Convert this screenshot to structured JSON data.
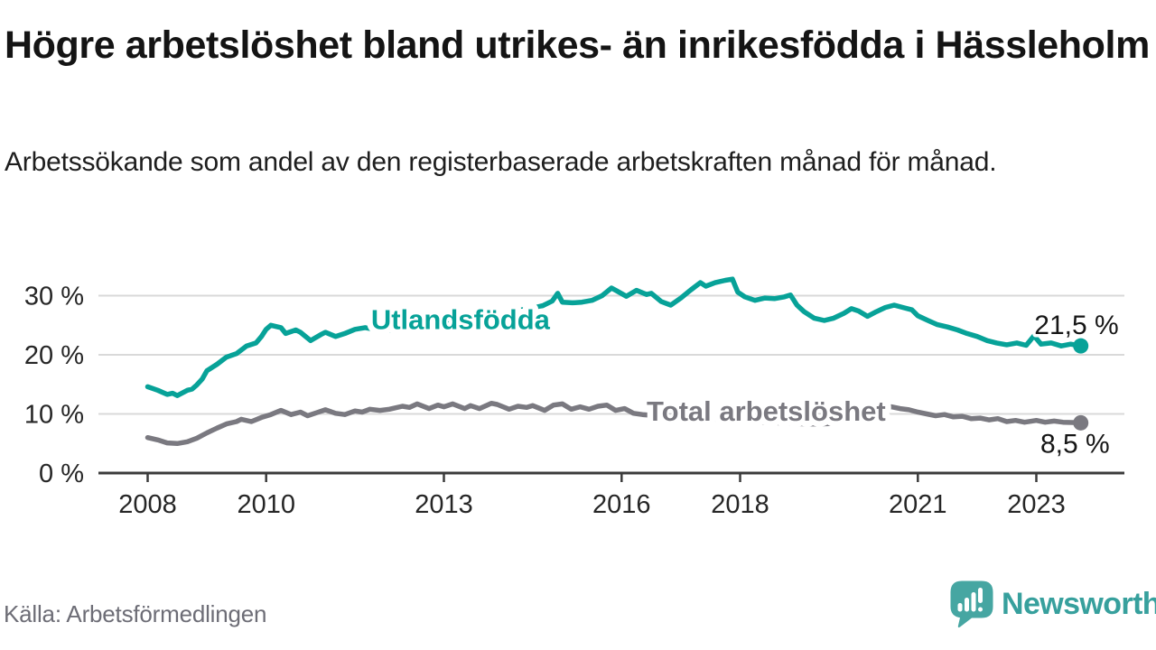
{
  "chart_data": {
    "type": "line",
    "title": "Högre arbetslöshet bland utrikes- än inrikesfödda i Hässleholm",
    "subtitle": "Arbetssökande som andel av den registerbaserade arbetskraften månad för månad.",
    "unit": "%",
    "x_axis": {
      "ticks": [
        2008,
        2010,
        2013,
        2016,
        2018,
        2021,
        2023
      ]
    },
    "y_axis": {
      "ticks": [
        0,
        10,
        20,
        30
      ],
      "tick_suffix": " %",
      "range": [
        0,
        33.5
      ],
      "grid": true
    },
    "legend_position": "inline-labels",
    "series": [
      {
        "name": "Utlandsfödda",
        "color": "#07a298",
        "label_at": {
          "x": 2013.28,
          "y": 26.0
        },
        "end_value_label": "21,5 %",
        "end_label_position": "above",
        "points": [
          [
            2008.0,
            14.6
          ],
          [
            2008.17,
            14.0
          ],
          [
            2008.33,
            13.3
          ],
          [
            2008.42,
            13.5
          ],
          [
            2008.5,
            13.1
          ],
          [
            2008.67,
            14.0
          ],
          [
            2008.75,
            14.2
          ],
          [
            2008.83,
            14.9
          ],
          [
            2008.92,
            15.9
          ],
          [
            2009.0,
            17.3
          ],
          [
            2009.17,
            18.4
          ],
          [
            2009.33,
            19.6
          ],
          [
            2009.5,
            20.2
          ],
          [
            2009.67,
            21.5
          ],
          [
            2009.83,
            22.0
          ],
          [
            2009.92,
            23.1
          ],
          [
            2010.0,
            24.3
          ],
          [
            2010.08,
            25.0
          ],
          [
            2010.25,
            24.6
          ],
          [
            2010.33,
            23.6
          ],
          [
            2010.5,
            24.2
          ],
          [
            2010.58,
            23.8
          ],
          [
            2010.75,
            22.4
          ],
          [
            2010.92,
            23.4
          ],
          [
            2011.0,
            23.8
          ],
          [
            2011.17,
            23.1
          ],
          [
            2011.33,
            23.6
          ],
          [
            2011.5,
            24.3
          ],
          [
            2011.67,
            24.6
          ],
          [
            2011.83,
            24.3
          ],
          [
            2012.0,
            24.0
          ],
          [
            2012.25,
            24.4
          ],
          [
            2012.5,
            24.9
          ],
          [
            2012.75,
            25.3
          ],
          [
            2013.0,
            25.7
          ],
          [
            2013.25,
            26.1
          ],
          [
            2013.5,
            26.4
          ],
          [
            2013.75,
            26.8
          ],
          [
            2014.0,
            27.1
          ],
          [
            2014.25,
            27.5
          ],
          [
            2014.5,
            27.9
          ],
          [
            2014.67,
            28.3
          ],
          [
            2014.83,
            29.1
          ],
          [
            2014.92,
            30.4
          ],
          [
            2015.0,
            28.9
          ],
          [
            2015.17,
            28.8
          ],
          [
            2015.33,
            28.9
          ],
          [
            2015.5,
            29.2
          ],
          [
            2015.67,
            30.0
          ],
          [
            2015.83,
            31.3
          ],
          [
            2015.92,
            30.8
          ],
          [
            2016.08,
            29.9
          ],
          [
            2016.25,
            30.9
          ],
          [
            2016.42,
            30.2
          ],
          [
            2016.5,
            30.4
          ],
          [
            2016.67,
            29.0
          ],
          [
            2016.83,
            28.4
          ],
          [
            2017.0,
            29.6
          ],
          [
            2017.17,
            31.0
          ],
          [
            2017.33,
            32.2
          ],
          [
            2017.42,
            31.6
          ],
          [
            2017.58,
            32.2
          ],
          [
            2017.75,
            32.6
          ],
          [
            2017.87,
            32.8
          ],
          [
            2017.96,
            30.6
          ],
          [
            2018.08,
            29.8
          ],
          [
            2018.25,
            29.2
          ],
          [
            2018.42,
            29.6
          ],
          [
            2018.58,
            29.5
          ],
          [
            2018.75,
            29.8
          ],
          [
            2018.85,
            30.1
          ],
          [
            2018.96,
            28.4
          ],
          [
            2019.08,
            27.3
          ],
          [
            2019.25,
            26.2
          ],
          [
            2019.42,
            25.8
          ],
          [
            2019.58,
            26.2
          ],
          [
            2019.75,
            27.0
          ],
          [
            2019.88,
            27.8
          ],
          [
            2020.0,
            27.4
          ],
          [
            2020.15,
            26.5
          ],
          [
            2020.3,
            27.3
          ],
          [
            2020.45,
            28.0
          ],
          [
            2020.6,
            28.4
          ],
          [
            2020.75,
            28.0
          ],
          [
            2020.9,
            27.6
          ],
          [
            2021.0,
            26.6
          ],
          [
            2021.17,
            25.8
          ],
          [
            2021.33,
            25.1
          ],
          [
            2021.5,
            24.7
          ],
          [
            2021.67,
            24.2
          ],
          [
            2021.83,
            23.6
          ],
          [
            2022.0,
            23.1
          ],
          [
            2022.17,
            22.4
          ],
          [
            2022.33,
            22.0
          ],
          [
            2022.5,
            21.7
          ],
          [
            2022.67,
            22.0
          ],
          [
            2022.83,
            21.6
          ],
          [
            2022.96,
            23.2
          ],
          [
            2023.08,
            21.8
          ],
          [
            2023.25,
            22.0
          ],
          [
            2023.42,
            21.5
          ],
          [
            2023.58,
            21.8
          ],
          [
            2023.75,
            21.5
          ]
        ]
      },
      {
        "name": "Total arbetslöshet",
        "color": "#7a7980",
        "label_at": {
          "x": 2018.44,
          "y": 10.5
        },
        "end_value_label": "8,5 %",
        "end_label_position": "below",
        "points": [
          [
            2008.0,
            6.0
          ],
          [
            2008.17,
            5.6
          ],
          [
            2008.33,
            5.1
          ],
          [
            2008.5,
            5.0
          ],
          [
            2008.67,
            5.3
          ],
          [
            2008.83,
            5.9
          ],
          [
            2009.0,
            6.8
          ],
          [
            2009.17,
            7.6
          ],
          [
            2009.33,
            8.3
          ],
          [
            2009.5,
            8.7
          ],
          [
            2009.58,
            9.1
          ],
          [
            2009.75,
            8.7
          ],
          [
            2009.92,
            9.4
          ],
          [
            2010.08,
            9.9
          ],
          [
            2010.25,
            10.6
          ],
          [
            2010.42,
            9.9
          ],
          [
            2010.58,
            10.3
          ],
          [
            2010.7,
            9.7
          ],
          [
            2010.85,
            10.2
          ],
          [
            2011.0,
            10.7
          ],
          [
            2011.17,
            10.1
          ],
          [
            2011.33,
            9.9
          ],
          [
            2011.5,
            10.5
          ],
          [
            2011.62,
            10.3
          ],
          [
            2011.75,
            10.8
          ],
          [
            2011.92,
            10.6
          ],
          [
            2012.08,
            10.8
          ],
          [
            2012.3,
            11.3
          ],
          [
            2012.42,
            11.1
          ],
          [
            2012.55,
            11.7
          ],
          [
            2012.75,
            10.9
          ],
          [
            2012.9,
            11.5
          ],
          [
            2013.0,
            11.2
          ],
          [
            2013.15,
            11.7
          ],
          [
            2013.35,
            10.9
          ],
          [
            2013.45,
            11.4
          ],
          [
            2013.6,
            10.9
          ],
          [
            2013.8,
            11.8
          ],
          [
            2013.9,
            11.6
          ],
          [
            2014.1,
            10.8
          ],
          [
            2014.25,
            11.3
          ],
          [
            2014.4,
            11.1
          ],
          [
            2014.5,
            11.4
          ],
          [
            2014.7,
            10.6
          ],
          [
            2014.85,
            11.5
          ],
          [
            2015.0,
            11.7
          ],
          [
            2015.15,
            10.8
          ],
          [
            2015.3,
            11.2
          ],
          [
            2015.45,
            10.8
          ],
          [
            2015.6,
            11.3
          ],
          [
            2015.75,
            11.5
          ],
          [
            2015.9,
            10.6
          ],
          [
            2016.05,
            10.9
          ],
          [
            2016.2,
            10.1
          ],
          [
            2016.35,
            9.9
          ],
          [
            2016.6,
            9.7
          ],
          [
            2016.85,
            9.5
          ],
          [
            2017.1,
            9.4
          ],
          [
            2017.35,
            9.2
          ],
          [
            2017.6,
            9.1
          ],
          [
            2017.85,
            8.9
          ],
          [
            2018.1,
            8.8
          ],
          [
            2018.35,
            8.6
          ],
          [
            2018.6,
            8.5
          ],
          [
            2018.85,
            8.4
          ],
          [
            2019.1,
            8.3
          ],
          [
            2019.35,
            8.3
          ],
          [
            2019.6,
            8.4
          ],
          [
            2019.85,
            8.6
          ],
          [
            2020.0,
            8.8
          ],
          [
            2020.2,
            9.6
          ],
          [
            2020.4,
            10.8
          ],
          [
            2020.55,
            11.2
          ],
          [
            2020.7,
            10.9
          ],
          [
            2020.85,
            10.7
          ],
          [
            2021.0,
            10.3
          ],
          [
            2021.15,
            10.0
          ],
          [
            2021.3,
            9.7
          ],
          [
            2021.45,
            9.9
          ],
          [
            2021.6,
            9.5
          ],
          [
            2021.75,
            9.6
          ],
          [
            2021.9,
            9.2
          ],
          [
            2022.05,
            9.3
          ],
          [
            2022.2,
            9.0
          ],
          [
            2022.35,
            9.2
          ],
          [
            2022.5,
            8.7
          ],
          [
            2022.65,
            8.9
          ],
          [
            2022.8,
            8.6
          ],
          [
            2023.0,
            8.9
          ],
          [
            2023.15,
            8.6
          ],
          [
            2023.3,
            8.8
          ],
          [
            2023.45,
            8.6
          ],
          [
            2023.75,
            8.5
          ]
        ]
      }
    ],
    "colors": {
      "axis": "#3b3b3b",
      "grid": "#d9d9d9",
      "tick_label": "#262626"
    }
  },
  "source": {
    "text": "Källa: Arbetsförmedlingen"
  },
  "logo": {
    "text": "Newsworthy",
    "color": "#37a09d"
  }
}
